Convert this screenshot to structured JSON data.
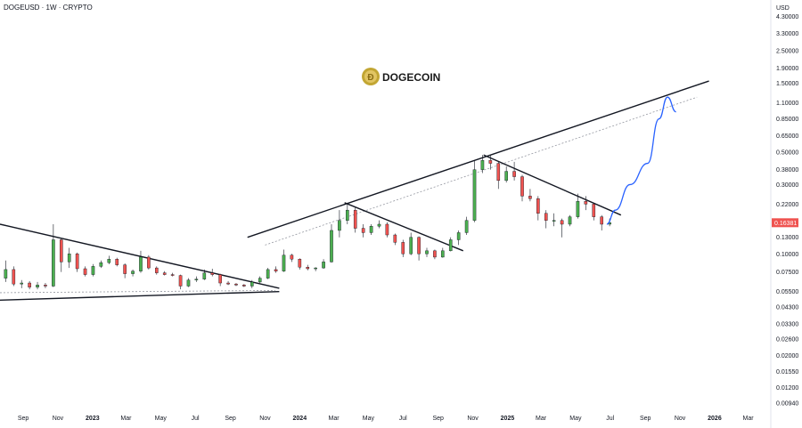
{
  "header": {
    "symbol_line": "DOGEUSD · 1W · CRYPTO"
  },
  "currency": "USD",
  "logo": {
    "text": "DOGECOIN",
    "icon": "dogecoin-coin-icon"
  },
  "colors": {
    "up": "#26a69a",
    "up_fill": "#4caf50",
    "down": "#ef5350",
    "price_tag": "#ef5350",
    "trendline": "#131722",
    "projection": "#2962ff"
  },
  "chart_data": {
    "type": "candlestick",
    "title": "",
    "scale": "log",
    "y_tick_labels": [
      "4.30000",
      "3.30000",
      "2.50000",
      "1.90000",
      "1.50000",
      "1.10000",
      "0.85000",
      "0.65000",
      "0.50000",
      "0.38000",
      "0.30000",
      "0.22000",
      "0.16381",
      "0.13000",
      "0.10000",
      "0.07500",
      "0.05500",
      "0.04300",
      "0.03300",
      "0.02600",
      "0.02000",
      "0.01550",
      "0.01200",
      "0.00940"
    ],
    "y_ticks": [
      4.3,
      3.3,
      2.5,
      1.9,
      1.5,
      1.1,
      0.85,
      0.65,
      0.5,
      0.38,
      0.3,
      0.22,
      0.13,
      0.1,
      0.075,
      0.055,
      0.043,
      0.033,
      0.026,
      0.02,
      0.0155,
      0.012,
      0.0094
    ],
    "last_price": 0.16381,
    "last_price_label": "0.16381",
    "x_labels": [
      {
        "label": "Sep",
        "date": "2022-09-01"
      },
      {
        "label": "Nov",
        "date": "2022-11-01"
      },
      {
        "label": "2023",
        "date": "2023-01-01",
        "bold": true
      },
      {
        "label": "Mar",
        "date": "2023-03-01"
      },
      {
        "label": "May",
        "date": "2023-05-01"
      },
      {
        "label": "Jul",
        "date": "2023-07-01"
      },
      {
        "label": "Sep",
        "date": "2023-09-01"
      },
      {
        "label": "Nov",
        "date": "2023-11-01"
      },
      {
        "label": "2024",
        "date": "2024-01-01",
        "bold": true
      },
      {
        "label": "Mar",
        "date": "2024-03-01"
      },
      {
        "label": "May",
        "date": "2024-05-01"
      },
      {
        "label": "Jul",
        "date": "2024-07-01"
      },
      {
        "label": "Sep",
        "date": "2024-09-01"
      },
      {
        "label": "Nov",
        "date": "2024-11-01"
      },
      {
        "label": "2025",
        "date": "2025-01-01",
        "bold": true
      },
      {
        "label": "Mar",
        "date": "2025-03-01"
      },
      {
        "label": "May",
        "date": "2025-05-01"
      },
      {
        "label": "Jul",
        "date": "2025-07-01"
      },
      {
        "label": "Sep",
        "date": "2025-09-01"
      },
      {
        "label": "Nov",
        "date": "2025-11-01"
      },
      {
        "label": "2026",
        "date": "2026-01-01",
        "bold": true
      },
      {
        "label": "Mar",
        "date": "2026-03-01"
      }
    ],
    "x_range": [
      "2022-07-22",
      "2026-04-10"
    ],
    "y_range": [
      0.0085,
      5.6
    ],
    "grid": false,
    "candles": [
      {
        "date": "2022-08-01",
        "o": 0.068,
        "h": 0.09,
        "l": 0.064,
        "c": 0.078
      },
      {
        "date": "2022-08-15",
        "o": 0.078,
        "h": 0.082,
        "l": 0.06,
        "c": 0.062
      },
      {
        "date": "2022-08-29",
        "o": 0.062,
        "h": 0.066,
        "l": 0.058,
        "c": 0.063
      },
      {
        "date": "2022-09-12",
        "o": 0.063,
        "h": 0.065,
        "l": 0.057,
        "c": 0.059
      },
      {
        "date": "2022-09-26",
        "o": 0.059,
        "h": 0.064,
        "l": 0.057,
        "c": 0.061
      },
      {
        "date": "2022-10-10",
        "o": 0.061,
        "h": 0.063,
        "l": 0.058,
        "c": 0.06
      },
      {
        "date": "2022-10-24",
        "o": 0.06,
        "h": 0.16,
        "l": 0.059,
        "c": 0.125
      },
      {
        "date": "2022-11-07",
        "o": 0.125,
        "h": 0.128,
        "l": 0.075,
        "c": 0.088
      },
      {
        "date": "2022-11-21",
        "o": 0.088,
        "h": 0.11,
        "l": 0.08,
        "c": 0.1
      },
      {
        "date": "2022-12-05",
        "o": 0.1,
        "h": 0.102,
        "l": 0.075,
        "c": 0.079
      },
      {
        "date": "2022-12-19",
        "o": 0.079,
        "h": 0.082,
        "l": 0.07,
        "c": 0.072
      },
      {
        "date": "2023-01-02",
        "o": 0.072,
        "h": 0.085,
        "l": 0.07,
        "c": 0.082
      },
      {
        "date": "2023-01-16",
        "o": 0.082,
        "h": 0.09,
        "l": 0.08,
        "c": 0.087
      },
      {
        "date": "2023-01-30",
        "o": 0.087,
        "h": 0.097,
        "l": 0.085,
        "c": 0.092
      },
      {
        "date": "2023-02-13",
        "o": 0.092,
        "h": 0.094,
        "l": 0.082,
        "c": 0.084
      },
      {
        "date": "2023-02-27",
        "o": 0.084,
        "h": 0.086,
        "l": 0.068,
        "c": 0.073
      },
      {
        "date": "2023-03-13",
        "o": 0.073,
        "h": 0.078,
        "l": 0.07,
        "c": 0.076
      },
      {
        "date": "2023-03-27",
        "o": 0.076,
        "h": 0.105,
        "l": 0.074,
        "c": 0.095
      },
      {
        "date": "2023-04-10",
        "o": 0.095,
        "h": 0.098,
        "l": 0.078,
        "c": 0.08
      },
      {
        "date": "2023-04-24",
        "o": 0.08,
        "h": 0.082,
        "l": 0.072,
        "c": 0.074
      },
      {
        "date": "2023-05-08",
        "o": 0.074,
        "h": 0.076,
        "l": 0.071,
        "c": 0.072
      },
      {
        "date": "2023-05-22",
        "o": 0.072,
        "h": 0.074,
        "l": 0.07,
        "c": 0.071
      },
      {
        "date": "2023-06-05",
        "o": 0.071,
        "h": 0.072,
        "l": 0.057,
        "c": 0.06
      },
      {
        "date": "2023-06-19",
        "o": 0.06,
        "h": 0.068,
        "l": 0.059,
        "c": 0.066
      },
      {
        "date": "2023-07-03",
        "o": 0.066,
        "h": 0.07,
        "l": 0.064,
        "c": 0.067
      },
      {
        "date": "2023-07-17",
        "o": 0.067,
        "h": 0.078,
        "l": 0.066,
        "c": 0.074
      },
      {
        "date": "2023-07-31",
        "o": 0.074,
        "h": 0.079,
        "l": 0.07,
        "c": 0.072
      },
      {
        "date": "2023-08-14",
        "o": 0.072,
        "h": 0.073,
        "l": 0.06,
        "c": 0.063
      },
      {
        "date": "2023-08-28",
        "o": 0.063,
        "h": 0.065,
        "l": 0.061,
        "c": 0.062
      },
      {
        "date": "2023-09-11",
        "o": 0.062,
        "h": 0.063,
        "l": 0.06,
        "c": 0.061
      },
      {
        "date": "2023-09-25",
        "o": 0.061,
        "h": 0.062,
        "l": 0.059,
        "c": 0.06
      },
      {
        "date": "2023-10-09",
        "o": 0.06,
        "h": 0.066,
        "l": 0.058,
        "c": 0.064
      },
      {
        "date": "2023-10-23",
        "o": 0.064,
        "h": 0.07,
        "l": 0.063,
        "c": 0.068
      },
      {
        "date": "2023-11-06",
        "o": 0.068,
        "h": 0.08,
        "l": 0.067,
        "c": 0.078
      },
      {
        "date": "2023-11-20",
        "o": 0.078,
        "h": 0.082,
        "l": 0.074,
        "c": 0.076
      },
      {
        "date": "2023-12-04",
        "o": 0.076,
        "h": 0.107,
        "l": 0.075,
        "c": 0.098
      },
      {
        "date": "2023-12-18",
        "o": 0.098,
        "h": 0.1,
        "l": 0.088,
        "c": 0.092
      },
      {
        "date": "2024-01-01",
        "o": 0.092,
        "h": 0.093,
        "l": 0.078,
        "c": 0.081
      },
      {
        "date": "2024-01-15",
        "o": 0.081,
        "h": 0.084,
        "l": 0.077,
        "c": 0.079
      },
      {
        "date": "2024-01-29",
        "o": 0.079,
        "h": 0.081,
        "l": 0.076,
        "c": 0.08
      },
      {
        "date": "2024-02-12",
        "o": 0.08,
        "h": 0.092,
        "l": 0.079,
        "c": 0.088
      },
      {
        "date": "2024-02-26",
        "o": 0.088,
        "h": 0.16,
        "l": 0.087,
        "c": 0.145
      },
      {
        "date": "2024-03-11",
        "o": 0.145,
        "h": 0.2,
        "l": 0.13,
        "c": 0.17
      },
      {
        "date": "2024-03-25",
        "o": 0.17,
        "h": 0.225,
        "l": 0.16,
        "c": 0.2
      },
      {
        "date": "2024-04-08",
        "o": 0.2,
        "h": 0.21,
        "l": 0.14,
        "c": 0.15
      },
      {
        "date": "2024-04-22",
        "o": 0.15,
        "h": 0.16,
        "l": 0.13,
        "c": 0.14
      },
      {
        "date": "2024-05-06",
        "o": 0.14,
        "h": 0.16,
        "l": 0.135,
        "c": 0.155
      },
      {
        "date": "2024-05-20",
        "o": 0.155,
        "h": 0.17,
        "l": 0.15,
        "c": 0.16
      },
      {
        "date": "2024-06-03",
        "o": 0.16,
        "h": 0.165,
        "l": 0.13,
        "c": 0.135
      },
      {
        "date": "2024-06-17",
        "o": 0.135,
        "h": 0.138,
        "l": 0.115,
        "c": 0.12
      },
      {
        "date": "2024-07-01",
        "o": 0.12,
        "h": 0.125,
        "l": 0.095,
        "c": 0.1
      },
      {
        "date": "2024-07-15",
        "o": 0.1,
        "h": 0.14,
        "l": 0.098,
        "c": 0.13
      },
      {
        "date": "2024-07-29",
        "o": 0.13,
        "h": 0.132,
        "l": 0.09,
        "c": 0.1
      },
      {
        "date": "2024-08-12",
        "o": 0.1,
        "h": 0.11,
        "l": 0.095,
        "c": 0.105
      },
      {
        "date": "2024-08-26",
        "o": 0.105,
        "h": 0.107,
        "l": 0.092,
        "c": 0.095
      },
      {
        "date": "2024-09-09",
        "o": 0.095,
        "h": 0.11,
        "l": 0.094,
        "c": 0.105
      },
      {
        "date": "2024-09-23",
        "o": 0.105,
        "h": 0.13,
        "l": 0.104,
        "c": 0.125
      },
      {
        "date": "2024-10-07",
        "o": 0.125,
        "h": 0.145,
        "l": 0.115,
        "c": 0.14
      },
      {
        "date": "2024-10-21",
        "o": 0.14,
        "h": 0.18,
        "l": 0.135,
        "c": 0.17
      },
      {
        "date": "2024-11-04",
        "o": 0.17,
        "h": 0.44,
        "l": 0.165,
        "c": 0.38
      },
      {
        "date": "2024-11-18",
        "o": 0.38,
        "h": 0.48,
        "l": 0.36,
        "c": 0.44
      },
      {
        "date": "2024-12-02",
        "o": 0.44,
        "h": 0.48,
        "l": 0.38,
        "c": 0.42
      },
      {
        "date": "2024-12-16",
        "o": 0.42,
        "h": 0.43,
        "l": 0.28,
        "c": 0.32
      },
      {
        "date": "2024-12-30",
        "o": 0.32,
        "h": 0.4,
        "l": 0.31,
        "c": 0.37
      },
      {
        "date": "2025-01-13",
        "o": 0.37,
        "h": 0.43,
        "l": 0.32,
        "c": 0.34
      },
      {
        "date": "2025-01-27",
        "o": 0.34,
        "h": 0.35,
        "l": 0.23,
        "c": 0.25
      },
      {
        "date": "2025-02-10",
        "o": 0.25,
        "h": 0.28,
        "l": 0.23,
        "c": 0.24
      },
      {
        "date": "2025-02-24",
        "o": 0.24,
        "h": 0.25,
        "l": 0.17,
        "c": 0.19
      },
      {
        "date": "2025-03-10",
        "o": 0.19,
        "h": 0.2,
        "l": 0.15,
        "c": 0.17
      },
      {
        "date": "2025-03-24",
        "o": 0.17,
        "h": 0.19,
        "l": 0.155,
        "c": 0.17
      },
      {
        "date": "2025-04-07",
        "o": 0.17,
        "h": 0.175,
        "l": 0.13,
        "c": 0.16
      },
      {
        "date": "2025-04-21",
        "o": 0.16,
        "h": 0.185,
        "l": 0.155,
        "c": 0.18
      },
      {
        "date": "2025-05-05",
        "o": 0.18,
        "h": 0.26,
        "l": 0.175,
        "c": 0.23
      },
      {
        "date": "2025-05-19",
        "o": 0.23,
        "h": 0.25,
        "l": 0.2,
        "c": 0.22
      },
      {
        "date": "2025-06-02",
        "o": 0.22,
        "h": 0.225,
        "l": 0.17,
        "c": 0.18
      },
      {
        "date": "2025-06-16",
        "o": 0.18,
        "h": 0.185,
        "l": 0.145,
        "c": 0.16
      },
      {
        "date": "2025-06-30",
        "o": 0.16,
        "h": 0.175,
        "l": 0.155,
        "c": 0.164
      }
    ],
    "annotations": [
      {
        "name": "descending-wedge-upper-trendline",
        "type": "line",
        "from": {
          "date": "2022-07-22",
          "price": 0.16
        },
        "to": {
          "date": "2023-11-26",
          "price": 0.058
        }
      },
      {
        "name": "descending-wedge-lower-trendline",
        "type": "line",
        "from": {
          "date": "2022-07-22",
          "price": 0.048
        },
        "to": {
          "date": "2023-11-26",
          "price": 0.055
        }
      },
      {
        "name": "long-term-ascending-trendline",
        "type": "line",
        "from": {
          "date": "2023-10-01",
          "price": 0.13
        },
        "to": {
          "date": "2025-12-22",
          "price": 1.55
        }
      },
      {
        "name": "ascending-trendline-shadow",
        "type": "line",
        "dashed": true,
        "from": {
          "date": "2023-11-01",
          "price": 0.115
        },
        "to": {
          "date": "2025-12-01",
          "price": 1.2
        }
      },
      {
        "name": "wedge-shadow-trendline",
        "type": "line",
        "dashed": true,
        "from": {
          "date": "2022-07-22",
          "price": 0.054
        },
        "to": {
          "date": "2023-11-19",
          "price": 0.056
        }
      },
      {
        "name": "2024-downtrend-line",
        "type": "line",
        "from": {
          "date": "2024-03-20",
          "price": 0.225
        },
        "to": {
          "date": "2024-10-15",
          "price": 0.105
        }
      },
      {
        "name": "2025-downtrend-line",
        "type": "line",
        "from": {
          "date": "2024-11-20",
          "price": 0.48
        },
        "to": {
          "date": "2025-07-20",
          "price": 0.185
        }
      },
      {
        "name": "projected-price-path",
        "type": "curve",
        "color": "blue",
        "points": [
          {
            "date": "2025-06-25",
            "price": 0.16
          },
          {
            "date": "2025-07-10",
            "price": 0.2
          },
          {
            "date": "2025-08-05",
            "price": 0.3
          },
          {
            "date": "2025-09-05",
            "price": 0.42
          },
          {
            "date": "2025-09-25",
            "price": 0.85
          },
          {
            "date": "2025-10-10",
            "price": 1.2
          },
          {
            "date": "2025-10-25",
            "price": 0.95
          }
        ]
      }
    ]
  }
}
